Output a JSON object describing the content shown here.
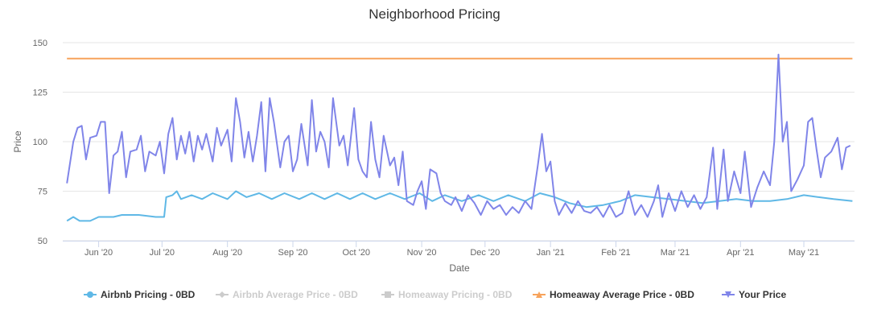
{
  "chart_data": {
    "type": "line",
    "title": "Neighborhood Pricing",
    "xlabel": "Date",
    "ylabel": "Price",
    "ylim": [
      50,
      150
    ],
    "yticks": [
      50,
      75,
      100,
      125,
      150
    ],
    "xlim": [
      "2020-05-15",
      "2021-05-25"
    ],
    "xticks": [
      {
        "date": "2020-06-01",
        "label": "Jun '20"
      },
      {
        "date": "2020-07-01",
        "label": "Jul '20"
      },
      {
        "date": "2020-08-01",
        "label": "Aug '20"
      },
      {
        "date": "2020-09-01",
        "label": "Sep '20"
      },
      {
        "date": "2020-10-01",
        "label": "Oct '20"
      },
      {
        "date": "2020-11-01",
        "label": "Nov '20"
      },
      {
        "date": "2020-12-01",
        "label": "Dec '20"
      },
      {
        "date": "2021-01-01",
        "label": "Jan '21"
      },
      {
        "date": "2021-02-01",
        "label": "Feb '21"
      },
      {
        "date": "2021-03-01",
        "label": "Mar '21"
      },
      {
        "date": "2021-04-01",
        "label": "Apr '21"
      },
      {
        "date": "2021-05-01",
        "label": "May '21"
      }
    ],
    "grid": true,
    "legend_position": "bottom",
    "series": [
      {
        "name": "Airbnb Pricing - 0BD",
        "color": "#5fb8e6",
        "marker": "circle",
        "visible": true,
        "points": [
          [
            "2020-05-17",
            60
          ],
          [
            "2020-05-20",
            62
          ],
          [
            "2020-05-23",
            60
          ],
          [
            "2020-05-28",
            60
          ],
          [
            "2020-06-01",
            62
          ],
          [
            "2020-06-08",
            62
          ],
          [
            "2020-06-12",
            63
          ],
          [
            "2020-06-20",
            63
          ],
          [
            "2020-06-28",
            62
          ],
          [
            "2020-07-02",
            62
          ],
          [
            "2020-07-03",
            72
          ],
          [
            "2020-07-06",
            73
          ],
          [
            "2020-07-08",
            75
          ],
          [
            "2020-07-10",
            71
          ],
          [
            "2020-07-15",
            73
          ],
          [
            "2020-07-20",
            71
          ],
          [
            "2020-07-25",
            74
          ],
          [
            "2020-08-01",
            71
          ],
          [
            "2020-08-05",
            75
          ],
          [
            "2020-08-10",
            72
          ],
          [
            "2020-08-16",
            74
          ],
          [
            "2020-08-22",
            71
          ],
          [
            "2020-08-28",
            74
          ],
          [
            "2020-09-04",
            71
          ],
          [
            "2020-09-10",
            74
          ],
          [
            "2020-09-16",
            71
          ],
          [
            "2020-09-22",
            74
          ],
          [
            "2020-09-28",
            71
          ],
          [
            "2020-10-04",
            74
          ],
          [
            "2020-10-10",
            71
          ],
          [
            "2020-10-17",
            74
          ],
          [
            "2020-10-24",
            71
          ],
          [
            "2020-10-31",
            74
          ],
          [
            "2020-11-06",
            70
          ],
          [
            "2020-11-12",
            73
          ],
          [
            "2020-11-20",
            70
          ],
          [
            "2020-11-28",
            73
          ],
          [
            "2020-12-05",
            70
          ],
          [
            "2020-12-12",
            73
          ],
          [
            "2020-12-20",
            70
          ],
          [
            "2020-12-27",
            74
          ],
          [
            "2021-01-03",
            72
          ],
          [
            "2021-01-10",
            69
          ],
          [
            "2021-01-18",
            67
          ],
          [
            "2021-01-26",
            68
          ],
          [
            "2021-02-03",
            70
          ],
          [
            "2021-02-10",
            73
          ],
          [
            "2021-02-18",
            72
          ],
          [
            "2021-02-26",
            71
          ],
          [
            "2021-03-06",
            70
          ],
          [
            "2021-03-14",
            69
          ],
          [
            "2021-03-22",
            70
          ],
          [
            "2021-03-30",
            71
          ],
          [
            "2021-04-07",
            70
          ],
          [
            "2021-04-15",
            70
          ],
          [
            "2021-04-23",
            71
          ],
          [
            "2021-05-01",
            73
          ],
          [
            "2021-05-08",
            72
          ],
          [
            "2021-05-15",
            71
          ],
          [
            "2021-05-24",
            70
          ]
        ]
      },
      {
        "name": "Airbnb Average Price - 0BD",
        "color": "#cccccc",
        "marker": "diamond",
        "visible": false,
        "points": []
      },
      {
        "name": "Homeaway Pricing - 0BD",
        "color": "#cccccc",
        "marker": "square",
        "visible": false,
        "points": []
      },
      {
        "name": "Homeaway Average Price - 0BD",
        "color": "#f7a35c",
        "marker": "triangle",
        "visible": true,
        "points": [
          [
            "2020-05-17",
            142
          ],
          [
            "2021-05-24",
            142
          ]
        ]
      },
      {
        "name": "Your Price",
        "color": "#8085e9",
        "marker": "triangle-down",
        "visible": true,
        "points": [
          [
            "2020-05-17",
            79
          ],
          [
            "2020-05-20",
            100
          ],
          [
            "2020-05-22",
            107
          ],
          [
            "2020-05-24",
            108
          ],
          [
            "2020-05-26",
            91
          ],
          [
            "2020-05-28",
            102
          ],
          [
            "2020-05-31",
            103
          ],
          [
            "2020-06-02",
            110
          ],
          [
            "2020-06-04",
            110
          ],
          [
            "2020-06-06",
            74
          ],
          [
            "2020-06-08",
            93
          ],
          [
            "2020-06-10",
            95
          ],
          [
            "2020-06-12",
            105
          ],
          [
            "2020-06-14",
            82
          ],
          [
            "2020-06-16",
            95
          ],
          [
            "2020-06-19",
            96
          ],
          [
            "2020-06-21",
            103
          ],
          [
            "2020-06-23",
            85
          ],
          [
            "2020-06-25",
            95
          ],
          [
            "2020-06-28",
            93
          ],
          [
            "2020-06-30",
            100
          ],
          [
            "2020-07-02",
            84
          ],
          [
            "2020-07-04",
            104
          ],
          [
            "2020-07-06",
            112
          ],
          [
            "2020-07-08",
            91
          ],
          [
            "2020-07-10",
            103
          ],
          [
            "2020-07-12",
            94
          ],
          [
            "2020-07-14",
            105
          ],
          [
            "2020-07-16",
            90
          ],
          [
            "2020-07-18",
            103
          ],
          [
            "2020-07-20",
            96
          ],
          [
            "2020-07-22",
            104
          ],
          [
            "2020-07-25",
            90
          ],
          [
            "2020-07-27",
            107
          ],
          [
            "2020-07-29",
            98
          ],
          [
            "2020-08-01",
            106
          ],
          [
            "2020-08-03",
            90
          ],
          [
            "2020-08-05",
            122
          ],
          [
            "2020-08-07",
            110
          ],
          [
            "2020-08-09",
            92
          ],
          [
            "2020-08-11",
            105
          ],
          [
            "2020-08-13",
            90
          ],
          [
            "2020-08-15",
            103
          ],
          [
            "2020-08-17",
            120
          ],
          [
            "2020-08-19",
            85
          ],
          [
            "2020-08-21",
            122
          ],
          [
            "2020-08-23",
            110
          ],
          [
            "2020-08-26",
            87
          ],
          [
            "2020-08-28",
            100
          ],
          [
            "2020-08-30",
            103
          ],
          [
            "2020-09-01",
            85
          ],
          [
            "2020-09-03",
            91
          ],
          [
            "2020-09-05",
            109
          ],
          [
            "2020-09-08",
            88
          ],
          [
            "2020-09-10",
            121
          ],
          [
            "2020-09-12",
            95
          ],
          [
            "2020-09-14",
            105
          ],
          [
            "2020-09-16",
            100
          ],
          [
            "2020-09-18",
            87
          ],
          [
            "2020-09-20",
            122
          ],
          [
            "2020-09-23",
            98
          ],
          [
            "2020-09-25",
            103
          ],
          [
            "2020-09-27",
            88
          ],
          [
            "2020-09-30",
            117
          ],
          [
            "2020-10-02",
            91
          ],
          [
            "2020-10-04",
            85
          ],
          [
            "2020-10-06",
            82
          ],
          [
            "2020-10-08",
            110
          ],
          [
            "2020-10-10",
            91
          ],
          [
            "2020-10-12",
            82
          ],
          [
            "2020-10-14",
            103
          ],
          [
            "2020-10-17",
            88
          ],
          [
            "2020-10-19",
            92
          ],
          [
            "2020-10-21",
            78
          ],
          [
            "2020-10-23",
            95
          ],
          [
            "2020-10-25",
            70
          ],
          [
            "2020-10-28",
            68
          ],
          [
            "2020-10-30",
            75
          ],
          [
            "2020-11-01",
            80
          ],
          [
            "2020-11-03",
            66
          ],
          [
            "2020-11-05",
            86
          ],
          [
            "2020-11-08",
            84
          ],
          [
            "2020-11-10",
            74
          ],
          [
            "2020-11-12",
            70
          ],
          [
            "2020-11-15",
            68
          ],
          [
            "2020-11-17",
            72
          ],
          [
            "2020-11-20",
            65
          ],
          [
            "2020-11-23",
            73
          ],
          [
            "2020-11-26",
            69
          ],
          [
            "2020-11-29",
            63
          ],
          [
            "2020-12-02",
            70
          ],
          [
            "2020-12-05",
            66
          ],
          [
            "2020-12-08",
            68
          ],
          [
            "2020-12-11",
            63
          ],
          [
            "2020-12-14",
            67
          ],
          [
            "2020-12-17",
            64
          ],
          [
            "2020-12-20",
            70
          ],
          [
            "2020-12-23",
            66
          ],
          [
            "2020-12-26",
            88
          ],
          [
            "2020-12-28",
            104
          ],
          [
            "2020-12-30",
            85
          ],
          [
            "2021-01-01",
            90
          ],
          [
            "2021-01-03",
            70
          ],
          [
            "2021-01-05",
            63
          ],
          [
            "2021-01-08",
            69
          ],
          [
            "2021-01-11",
            64
          ],
          [
            "2021-01-14",
            70
          ],
          [
            "2021-01-17",
            65
          ],
          [
            "2021-01-20",
            64
          ],
          [
            "2021-01-23",
            67
          ],
          [
            "2021-01-26",
            62
          ],
          [
            "2021-01-29",
            68
          ],
          [
            "2021-02-01",
            62
          ],
          [
            "2021-02-04",
            64
          ],
          [
            "2021-02-07",
            75
          ],
          [
            "2021-02-10",
            63
          ],
          [
            "2021-02-13",
            68
          ],
          [
            "2021-02-16",
            62
          ],
          [
            "2021-02-19",
            70
          ],
          [
            "2021-02-21",
            78
          ],
          [
            "2021-02-23",
            62
          ],
          [
            "2021-02-26",
            74
          ],
          [
            "2021-03-01",
            65
          ],
          [
            "2021-03-04",
            75
          ],
          [
            "2021-03-07",
            67
          ],
          [
            "2021-03-10",
            73
          ],
          [
            "2021-03-13",
            66
          ],
          [
            "2021-03-16",
            72
          ],
          [
            "2021-03-19",
            97
          ],
          [
            "2021-03-21",
            66
          ],
          [
            "2021-03-24",
            96
          ],
          [
            "2021-03-26",
            70
          ],
          [
            "2021-03-29",
            85
          ],
          [
            "2021-04-01",
            74
          ],
          [
            "2021-04-03",
            95
          ],
          [
            "2021-04-06",
            67
          ],
          [
            "2021-04-09",
            77
          ],
          [
            "2021-04-12",
            85
          ],
          [
            "2021-04-15",
            78
          ],
          [
            "2021-04-17",
            100
          ],
          [
            "2021-04-19",
            144
          ],
          [
            "2021-04-21",
            100
          ],
          [
            "2021-04-23",
            110
          ],
          [
            "2021-04-25",
            75
          ],
          [
            "2021-04-28",
            81
          ],
          [
            "2021-05-01",
            88
          ],
          [
            "2021-05-03",
            110
          ],
          [
            "2021-05-05",
            112
          ],
          [
            "2021-05-07",
            96
          ],
          [
            "2021-05-09",
            82
          ],
          [
            "2021-05-11",
            92
          ],
          [
            "2021-05-14",
            95
          ],
          [
            "2021-05-17",
            102
          ],
          [
            "2021-05-19",
            86
          ],
          [
            "2021-05-21",
            97
          ],
          [
            "2021-05-23",
            98
          ]
        ]
      }
    ]
  }
}
